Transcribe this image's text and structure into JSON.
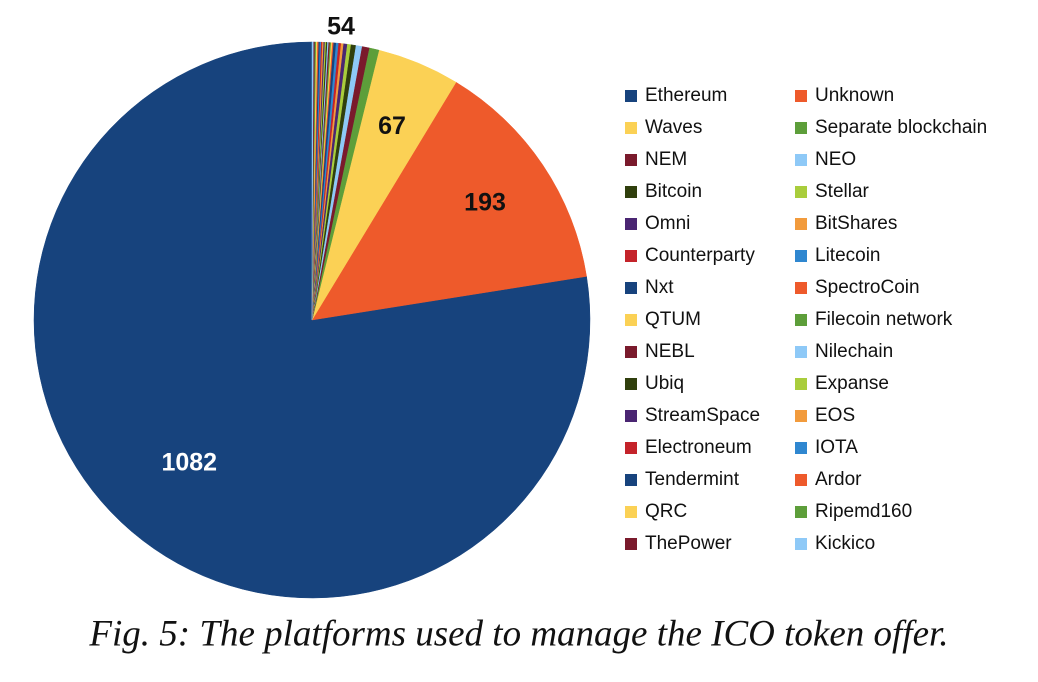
{
  "chart_data": {
    "type": "pie",
    "caption": "Fig. 5: The platforms used to manage the ICO token offer.",
    "annotation": "54",
    "categories": [
      "Ethereum",
      "Unknown",
      "Waves",
      "Separate blockchain",
      "NEM",
      "NEO",
      "Bitcoin",
      "Stellar",
      "Omni",
      "BitShares",
      "Counterparty",
      "Litecoin",
      "Nxt",
      "SpectroCoin",
      "QTUM",
      "Filecoin network",
      "NEBL",
      "Nilechain",
      "Ubiq",
      "Expanse",
      "StreamSpace",
      "EOS",
      "Electroneum",
      "IOTA",
      "Tendermint",
      "Ardor",
      "QRC",
      "Ripemd160",
      "ThePower",
      "Kickico"
    ],
    "values": [
      1082,
      193,
      67,
      8,
      6,
      5,
      4,
      3,
      3,
      2,
      2,
      2,
      2,
      1,
      1,
      1,
      1,
      1,
      1,
      1,
      1,
      1,
      1,
      1,
      1,
      1,
      1,
      1,
      1,
      1
    ],
    "labeled": [
      true,
      true,
      true,
      false,
      false,
      false,
      false,
      false,
      false,
      false,
      false,
      false,
      false,
      false,
      false,
      false,
      false,
      false,
      false,
      false,
      false,
      false,
      false,
      false,
      false,
      false,
      false,
      false,
      false,
      false
    ],
    "colors": [
      "#17437d",
      "#ee5a2b",
      "#fbd155",
      "#5d9e3a",
      "#7a1a2c",
      "#8ec9f7",
      "#303f0d",
      "#a9cd3c",
      "#4a2572",
      "#f29b3c",
      "#c4232a",
      "#2f87d0",
      "#17437d",
      "#ee5a2b",
      "#fbd155",
      "#5d9e3a",
      "#7a1a2c",
      "#8ec9f7",
      "#303f0d",
      "#a9cd3c",
      "#4a2572",
      "#f29b3c",
      "#c4232a",
      "#2f87d0",
      "#17437d",
      "#ee5a2b",
      "#fbd155",
      "#5d9e3a",
      "#7a1a2c",
      "#8ec9f7"
    ],
    "legend": "right"
  }
}
